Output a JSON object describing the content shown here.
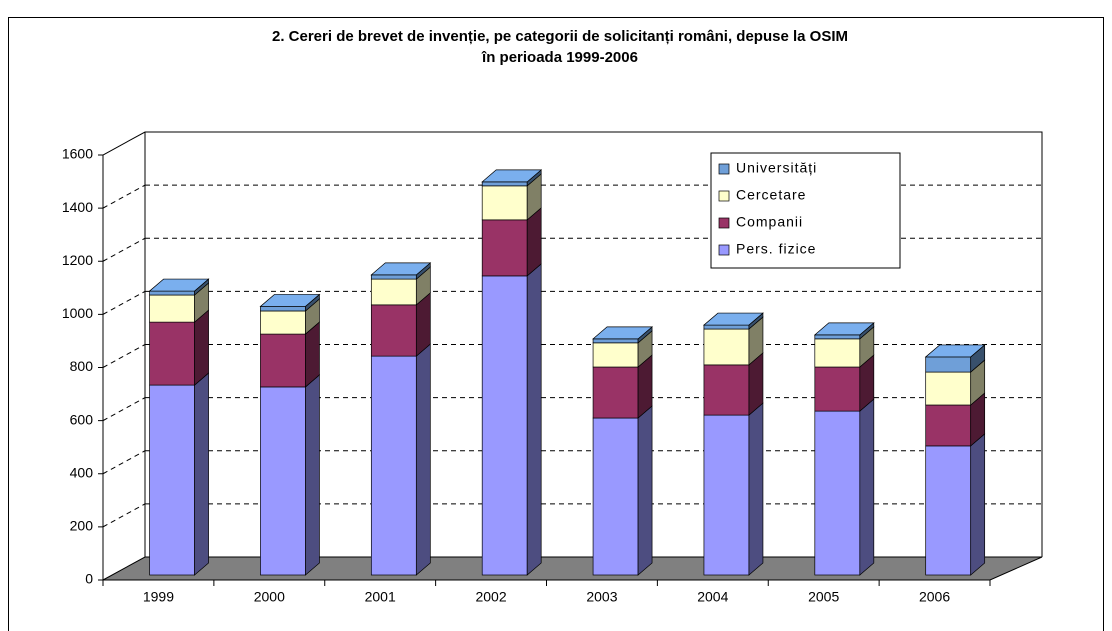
{
  "chart_data": {
    "type": "bar3d-stacked",
    "title": [
      "2. Cereri de brevet de invenție, pe categorii de solicitanți români, depuse la OSIM",
      "în perioada 1999-2006"
    ],
    "categories": [
      "1999",
      "2000",
      "2001",
      "2002",
      "2003",
      "2004",
      "2005",
      "2006"
    ],
    "series": [
      {
        "name": "Pers. fizice",
        "color": "#9999ff",
        "values": [
          715,
          708,
          824,
          1126,
          591,
          602,
          617,
          486
        ]
      },
      {
        "name": "Companii",
        "color": "#993366",
        "values": [
          237,
          199,
          193,
          211,
          192,
          189,
          166,
          154
        ]
      },
      {
        "name": "Cercetare",
        "color": "#ffffcc",
        "values": [
          102,
          87,
          97,
          128,
          91,
          135,
          106,
          124
        ]
      },
      {
        "name": "Universități",
        "color": "#6f9fd8",
        "values": [
          15,
          17,
          16,
          15,
          15,
          15,
          15,
          57
        ]
      }
    ],
    "ylim": [
      0,
      1600
    ],
    "yticks": [
      0,
      200,
      400,
      600,
      800,
      1000,
      1200,
      1400,
      1600
    ],
    "grid": true,
    "legend": "top-right"
  }
}
